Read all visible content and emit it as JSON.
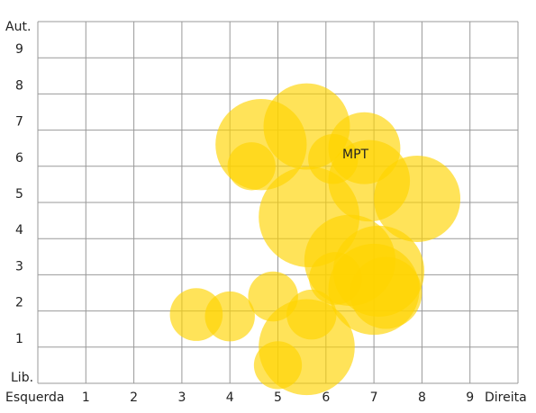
{
  "chart_data": {
    "type": "bubble",
    "x": [
      3.3,
      4.0,
      4.9,
      5.7,
      5.6,
      5.0,
      4.65,
      4.45,
      5.6,
      5.65,
      6.8,
      6.15,
      6.9,
      7.9,
      6.5,
      6.2,
      7.1,
      7.0,
      7.25
    ],
    "values": [
      1.9,
      1.85,
      2.4,
      1.9,
      1.0,
      0.5,
      6.6,
      6.0,
      7.1,
      4.6,
      6.5,
      6.2,
      5.6,
      5.1,
      3.4,
      2.9,
      3.1,
      2.6,
      2.5
    ],
    "sizes": [
      0.55,
      0.52,
      0.52,
      0.52,
      1.0,
      0.5,
      0.95,
      0.5,
      0.9,
      1.05,
      0.75,
      0.52,
      0.85,
      0.9,
      0.95,
      0.55,
      0.95,
      0.95,
      0.75
    ],
    "color": "#ffd400",
    "annotation": "MPT",
    "xlim": [
      0,
      10
    ],
    "ylim": [
      0,
      10
    ],
    "xticks": [
      1,
      2,
      3,
      4,
      5,
      6,
      7,
      8,
      9
    ],
    "yticks": [
      1,
      2,
      3,
      4,
      5,
      6,
      7,
      8,
      9
    ],
    "grid": true,
    "xlabel_left": "Esquerda",
    "xlabel_right": "Direita",
    "ylabel_top": "Aut.",
    "ylabel_bottom": "Lib."
  }
}
